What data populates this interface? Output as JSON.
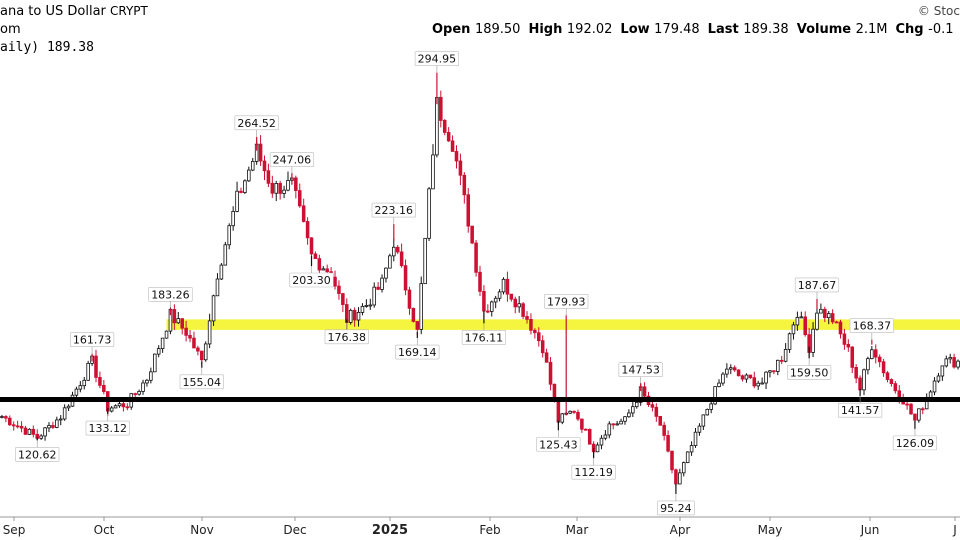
{
  "header": {
    "title": "ana to US Dollar",
    "exchange": "CRYPT",
    "line2": "om",
    "line3_series": "aily) 189.38",
    "watermark": "© Stoc",
    "ohlc": [
      {
        "k": "Open",
        "v": "189.50"
      },
      {
        "k": "High",
        "v": "192.02"
      },
      {
        "k": "Low",
        "v": "179.48"
      },
      {
        "k": "Last",
        "v": "189.38"
      },
      {
        "k": "Volume",
        "v": "2.1M"
      },
      {
        "k": "Chg",
        "v": "-0.1"
      }
    ]
  },
  "colors": {
    "up": "#111111",
    "down": "#cc1133",
    "support": "#000000",
    "resistance_band": "#f2f200"
  },
  "chart_data": {
    "type": "candlestick",
    "x_ticks": [
      "Sep",
      "Oct",
      "Nov",
      "Dec",
      "2025",
      "Feb",
      "Mar",
      "Apr",
      "May",
      "Jun",
      "J"
    ],
    "y_range": [
      90,
      300
    ],
    "support_level": 140,
    "resistance_band": [
      173,
      178
    ],
    "annotations": [
      {
        "t": 9,
        "v": 120.62,
        "label": "120.62",
        "pos": "low"
      },
      {
        "t": 23,
        "v": 161.73,
        "label": "161.73",
        "pos": "high"
      },
      {
        "t": 27,
        "v": 133.12,
        "label": "133.12",
        "pos": "low"
      },
      {
        "t": 43,
        "v": 183.26,
        "label": "183.26",
        "pos": "high"
      },
      {
        "t": 51,
        "v": 155.04,
        "label": "155.04",
        "pos": "low"
      },
      {
        "t": 65,
        "v": 264.52,
        "label": "264.52",
        "pos": "high"
      },
      {
        "t": 74,
        "v": 247.06,
        "label": "247.06",
        "pos": "high"
      },
      {
        "t": 79,
        "v": 203.3,
        "label": "203.30",
        "pos": "low"
      },
      {
        "t": 88,
        "v": 176.38,
        "label": "176.38",
        "pos": "low"
      },
      {
        "t": 100,
        "v": 223.16,
        "label": "223.16",
        "pos": "high"
      },
      {
        "t": 106,
        "v": 169.14,
        "label": "169.14",
        "pos": "low"
      },
      {
        "t": 111,
        "v": 294.95,
        "label": "294.95",
        "pos": "high"
      },
      {
        "t": 123,
        "v": 176.11,
        "label": "176.11",
        "pos": "low"
      },
      {
        "t": 144,
        "v": 179.93,
        "label": "179.93",
        "pos": "high"
      },
      {
        "t": 142,
        "v": 125.43,
        "label": "125.43",
        "pos": "low"
      },
      {
        "t": 151,
        "v": 112.19,
        "label": "112.19",
        "pos": "low"
      },
      {
        "t": 163,
        "v": 147.53,
        "label": "147.53",
        "pos": "high"
      },
      {
        "t": 172,
        "v": 95.24,
        "label": "95.24",
        "pos": "low"
      },
      {
        "t": 208,
        "v": 187.67,
        "label": "187.67",
        "pos": "high"
      },
      {
        "t": 206,
        "v": 159.5,
        "label": "159.50",
        "pos": "low"
      },
      {
        "t": 222,
        "v": 168.37,
        "label": "168.37",
        "pos": "high"
      },
      {
        "t": 219,
        "v": 141.57,
        "label": "141.57",
        "pos": "low"
      },
      {
        "t": 233,
        "v": 126.09,
        "label": "126.09",
        "pos": "low"
      }
    ],
    "anchors": [
      [
        0,
        132
      ],
      [
        9,
        122
      ],
      [
        15,
        132
      ],
      [
        23,
        158
      ],
      [
        27,
        136
      ],
      [
        32,
        138
      ],
      [
        37,
        150
      ],
      [
        43,
        180
      ],
      [
        47,
        172
      ],
      [
        51,
        158
      ],
      [
        55,
        200
      ],
      [
        60,
        235
      ],
      [
        65,
        258
      ],
      [
        69,
        240
      ],
      [
        74,
        242
      ],
      [
        79,
        208
      ],
      [
        84,
        200
      ],
      [
        88,
        178
      ],
      [
        93,
        185
      ],
      [
        97,
        195
      ],
      [
        100,
        215
      ],
      [
        106,
        172
      ],
      [
        111,
        280
      ],
      [
        115,
        262
      ],
      [
        119,
        225
      ],
      [
        123,
        182
      ],
      [
        128,
        195
      ],
      [
        133,
        182
      ],
      [
        138,
        165
      ],
      [
        142,
        130
      ],
      [
        146,
        135
      ],
      [
        151,
        117
      ],
      [
        155,
        128
      ],
      [
        159,
        130
      ],
      [
        163,
        144
      ],
      [
        168,
        128
      ],
      [
        172,
        100
      ],
      [
        176,
        118
      ],
      [
        181,
        140
      ],
      [
        185,
        155
      ],
      [
        189,
        150
      ],
      [
        194,
        148
      ],
      [
        199,
        160
      ],
      [
        203,
        182
      ],
      [
        206,
        165
      ],
      [
        208,
        183
      ],
      [
        212,
        178
      ],
      [
        216,
        163
      ],
      [
        219,
        145
      ],
      [
        222,
        166
      ],
      [
        226,
        150
      ],
      [
        230,
        140
      ],
      [
        233,
        130
      ],
      [
        237,
        145
      ],
      [
        240,
        158
      ]
    ]
  }
}
